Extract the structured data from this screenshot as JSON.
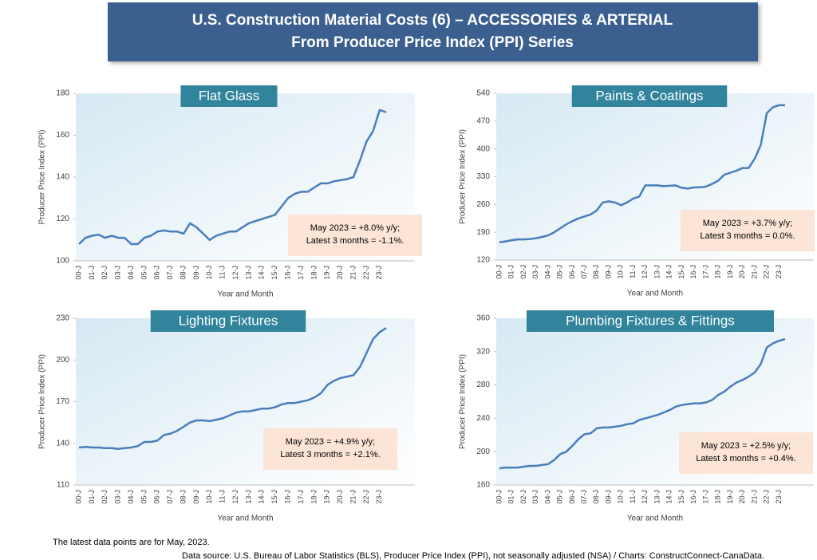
{
  "header": {
    "title": "U.S. Construction Material Costs (6) – ACCESSORIES & ARTERIAL",
    "subtitle": "From Producer Price Index (PPI) Series"
  },
  "footnotes": [
    "The latest data points are for May, 2023.",
    "Data source: U.S. Bureau of Labor Statistics (BLS), Producer Price Index (PPI), not seasonally adjusted (NSA) / Charts: ConstructConnect-CanaData."
  ],
  "chart_data": [
    {
      "type": "line",
      "title": "Flat Glass",
      "x_label": "Year and Month",
      "y_label": "Producer Price Index (PPI)",
      "color": "#4a7ebb",
      "annotation": [
        "May 2023 = +8.0% y/y;",
        "Latest 3 months = -1.1%."
      ],
      "categories": [
        "00-J",
        null,
        "01-J",
        null,
        "02-J",
        null,
        "03-J",
        null,
        "04-J",
        null,
        "05-J",
        null,
        "06-J",
        null,
        "07-J",
        null,
        "08-J",
        null,
        "09-J",
        null,
        "10-J",
        null,
        "11-J",
        null,
        "12-J",
        null,
        "13-J",
        null,
        "14-J",
        null,
        "15-J",
        null,
        "16-J",
        null,
        "17-J",
        null,
        "18-J",
        null,
        "19-J",
        null,
        "20-J",
        null,
        "21-J",
        null,
        "22-J",
        null,
        "23-J",
        null
      ],
      "values": [
        108,
        111,
        112,
        112.5,
        111,
        112,
        111,
        111,
        108,
        108,
        111,
        112,
        114,
        114.5,
        114,
        114,
        113,
        118,
        116,
        113,
        110,
        112,
        113,
        114,
        114,
        116,
        118,
        119,
        120,
        121,
        122,
        126,
        130,
        132,
        133,
        133,
        135,
        137,
        137,
        138,
        138.5,
        139,
        140,
        148,
        157,
        162,
        172,
        171
      ],
      "ylim": [
        100,
        180
      ],
      "yticks": [
        100,
        120,
        140,
        160,
        180
      ]
    },
    {
      "type": "line",
      "title": "Paints & Coatings",
      "x_label": "Year and Month",
      "y_label": "Producer Price Index (PPI)",
      "color": "#4a7ebb",
      "annotation": [
        "May 2023 = +3.7% y/y;",
        "Latest 3 months = 0.0%."
      ],
      "categories": [
        "00-J",
        null,
        "01-J",
        null,
        "02-J",
        null,
        "03-J",
        null,
        "04-J",
        null,
        "05-J",
        null,
        "06-J",
        null,
        "07-J",
        null,
        "08-J",
        null,
        "09-J",
        null,
        "10-J",
        null,
        "11-J",
        null,
        "12-J",
        null,
        "13-J",
        null,
        "14-J",
        null,
        "15-J",
        null,
        "16-J",
        null,
        "17-J",
        null,
        "18-J",
        null,
        "19-J",
        null,
        "20-J",
        null,
        "21-J",
        null,
        "22-J",
        null,
        "23-J",
        null
      ],
      "values": [
        165,
        167,
        170,
        172,
        172,
        173,
        175,
        178,
        182,
        190,
        200,
        210,
        218,
        225,
        230,
        235,
        245,
        265,
        268,
        265,
        258,
        265,
        275,
        280,
        308,
        308,
        308,
        306,
        307,
        308,
        302,
        300,
        303,
        303,
        305,
        312,
        320,
        335,
        340,
        345,
        352,
        352,
        375,
        410,
        490,
        505,
        510,
        510
      ],
      "ylim": [
        120,
        540
      ],
      "yticks": [
        120,
        190,
        260,
        330,
        400,
        470,
        540
      ]
    },
    {
      "type": "line",
      "title": "Lighting Fixtures",
      "x_label": "Year and Month",
      "y_label": "Producer Price Index (PPI)",
      "color": "#4a7ebb",
      "annotation": [
        "May 2023 = +4.9% y/y;",
        "Latest 3 months = +2.1%."
      ],
      "categories": [
        "00-J",
        null,
        "01-J",
        null,
        "02-J",
        null,
        "03-J",
        null,
        "04-J",
        null,
        "05-J",
        null,
        "06-J",
        null,
        "07-J",
        null,
        "08-J",
        null,
        "09-J",
        null,
        "10-J",
        null,
        "11-J",
        null,
        "12-J",
        null,
        "13-J",
        null,
        "14-J",
        null,
        "15-J",
        null,
        "16-J",
        null,
        "17-J",
        null,
        "18-J",
        null,
        "19-J",
        null,
        "20-J",
        null,
        "21-J",
        null,
        "22-J",
        null,
        "23-J",
        null
      ],
      "values": [
        137,
        137.5,
        137,
        137,
        136.5,
        136.5,
        136,
        136.5,
        137,
        138,
        141,
        141,
        142,
        146,
        147,
        149,
        152,
        155,
        156.5,
        156.5,
        156,
        157,
        158,
        160,
        162,
        163,
        163,
        164,
        165,
        165,
        166,
        168,
        169,
        169,
        170,
        171,
        173,
        176,
        182,
        185,
        187,
        188,
        189,
        195,
        205,
        215,
        220,
        223
      ],
      "ylim": [
        110,
        230
      ],
      "yticks": [
        110,
        140,
        170,
        200,
        230
      ]
    },
    {
      "type": "line",
      "title": "Plumbing Fixtures & Fittings",
      "x_label": "Year and Month",
      "y_label": "Producer Price Index (PPI)",
      "color": "#4a7ebb",
      "annotation": [
        "May 2023 = +2.5% y/y;",
        "Latest 3 months = +0.4%."
      ],
      "categories": [
        "00-J",
        null,
        "01-J",
        null,
        "02-J",
        null,
        "03-J",
        null,
        "04-J",
        null,
        "05-J",
        null,
        "06-J",
        null,
        "07-J",
        null,
        "08-J",
        null,
        "09-J",
        null,
        "10-J",
        null,
        "11-J",
        null,
        "12-J",
        null,
        "13-J",
        null,
        "14-J",
        null,
        "15-J",
        null,
        "16-J",
        null,
        "17-J",
        null,
        "18-J",
        null,
        "19-J",
        null,
        "20-J",
        null,
        "21-J",
        null,
        "22-J",
        null,
        "23-J",
        null
      ],
      "values": [
        180,
        181,
        181,
        181,
        182,
        183,
        183,
        184,
        185,
        190,
        197,
        200,
        207,
        215,
        221,
        222,
        228,
        229,
        229,
        230,
        231,
        233,
        234,
        238,
        240,
        242,
        244,
        247,
        250,
        254,
        256,
        257,
        258,
        258,
        259,
        262,
        268,
        272,
        278,
        283,
        286,
        290,
        295,
        305,
        325,
        330,
        333,
        335
      ],
      "ylim": [
        160,
        360
      ],
      "yticks": [
        160,
        200,
        240,
        280,
        320,
        360
      ]
    }
  ]
}
